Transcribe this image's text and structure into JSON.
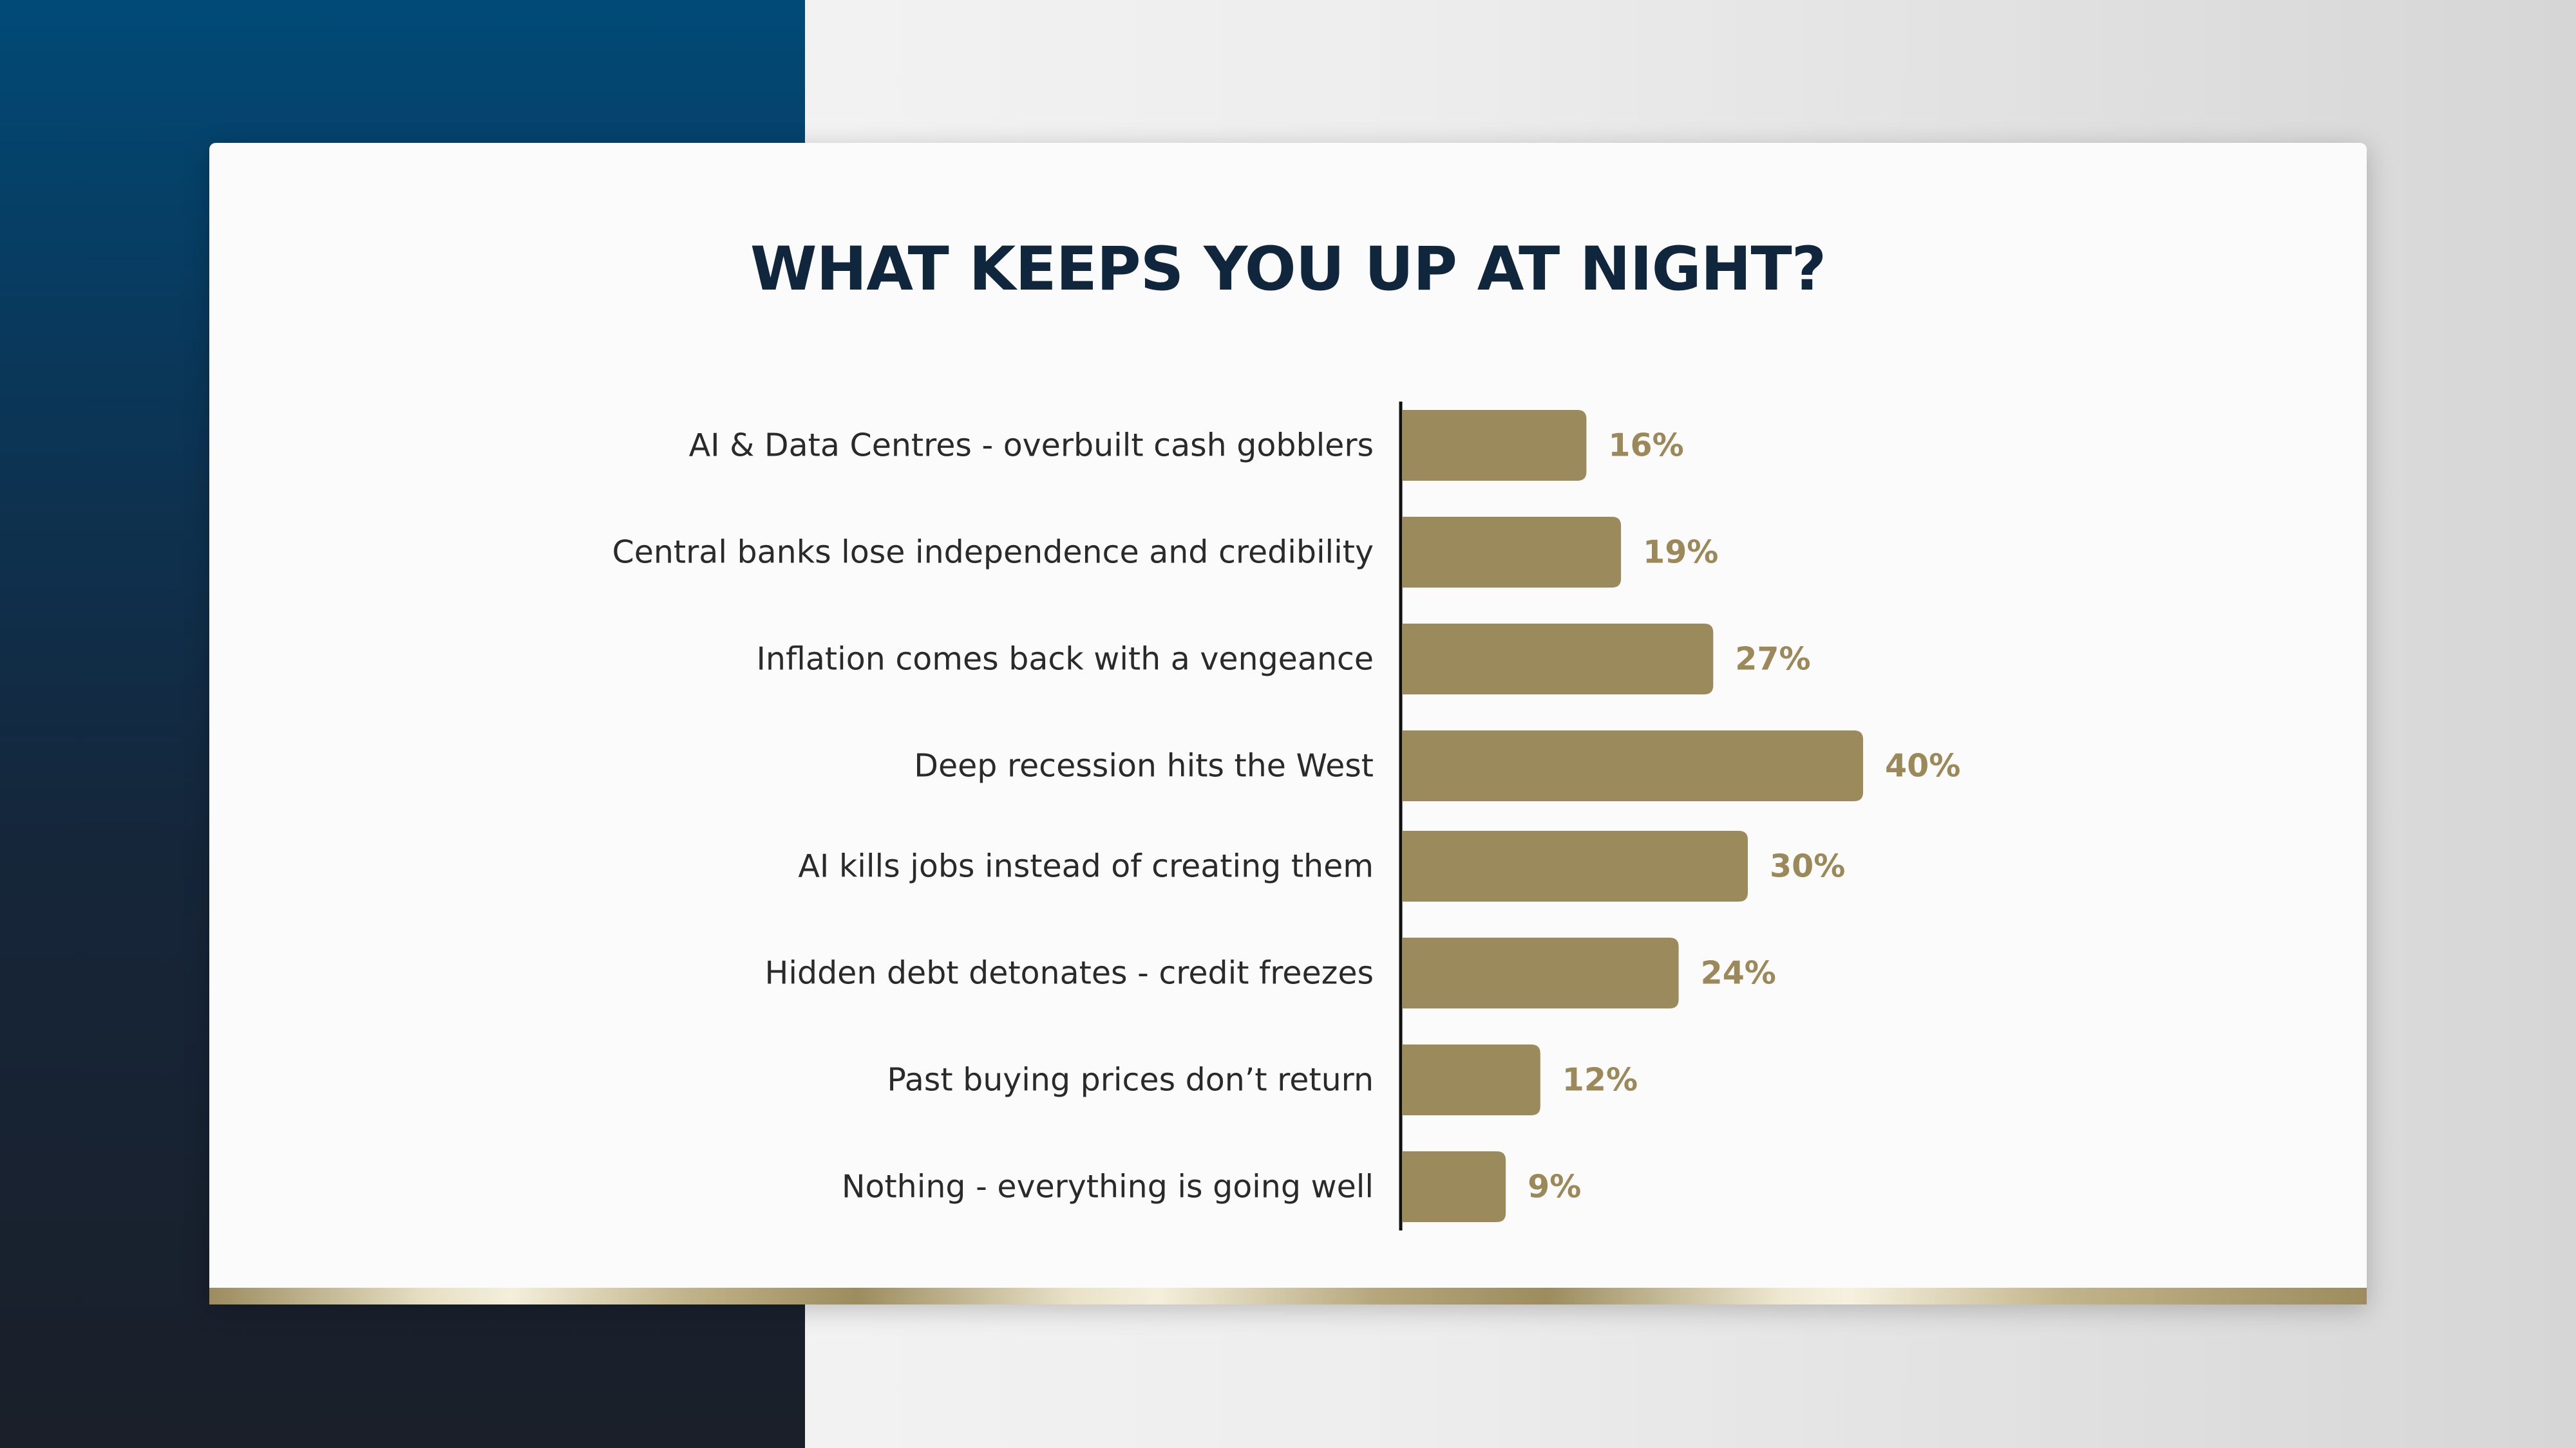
{
  "colors": {
    "bar": "#9b8a5b",
    "value_text": "#9c8959",
    "title": "#10263d",
    "label": "#2a2a2a",
    "axis": "#111111"
  },
  "chart_data": {
    "type": "bar",
    "orientation": "horizontal",
    "title": "WHAT KEEPS YOU UP AT NIGHT?",
    "categories": [
      "AI & Data Centres - overbuilt cash gobblers",
      "Central banks lose independence and credibility",
      "Inflation comes back with a vengeance",
      "Deep recession hits the West",
      "AI kills jobs instead of creating them",
      "Hidden debt detonates - credit freezes",
      "Past buying prices don’t return",
      "Nothing - everything is going well"
    ],
    "values": [
      16,
      19,
      27,
      40,
      30,
      24,
      12,
      9
    ],
    "value_labels": [
      "16%",
      "19%",
      "27%",
      "40%",
      "30%",
      "24%",
      "12%",
      "9%"
    ],
    "unit": "%",
    "xlim": [
      0,
      40
    ],
    "grid": false,
    "legend": "none"
  }
}
